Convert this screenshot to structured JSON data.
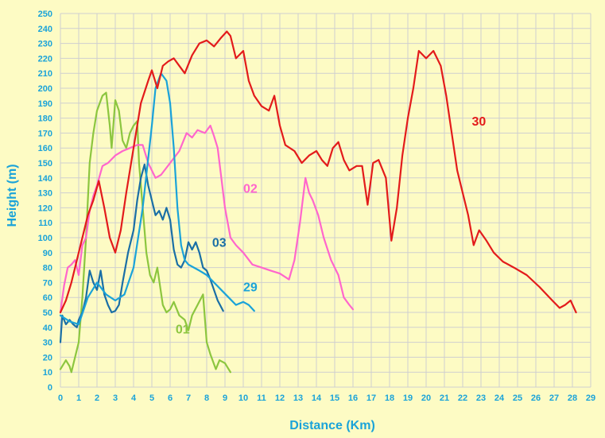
{
  "chart_data": {
    "type": "line",
    "xlabel": "Distance (Km)",
    "ylabel": "Height (m)",
    "xlim": [
      0,
      29
    ],
    "ylim": [
      0,
      250
    ],
    "xticks": [
      "0",
      "1",
      "2",
      "3",
      "4",
      "5",
      "6",
      "7",
      "8",
      "9",
      "10",
      "11",
      "12",
      "13",
      "14",
      "15",
      "16",
      "17",
      "18",
      "19",
      "20",
      "21",
      "22",
      "23",
      "24",
      "25",
      "26",
      "27",
      "28",
      "29"
    ],
    "yticks": [
      "0",
      "10",
      "20",
      "30",
      "40",
      "50",
      "60",
      "70",
      "80",
      "90",
      "100",
      "110",
      "120",
      "130",
      "140",
      "150",
      "160",
      "170",
      "180",
      "190",
      "200",
      "210",
      "220",
      "230",
      "240",
      "250"
    ],
    "grid": true,
    "colors": {
      "background": "#fdfbc4",
      "grid": "#cfcfcf",
      "axis_text": "#1aa3d9"
    },
    "series": [
      {
        "name": "01",
        "color": "#8cc63f",
        "x": [
          0,
          0.3,
          0.5,
          0.6,
          0.8,
          1.0,
          1.2,
          1.4,
          1.6,
          1.8,
          2.0,
          2.3,
          2.5,
          2.7,
          2.8,
          3.0,
          3.2,
          3.4,
          3.6,
          3.8,
          4.0,
          4.2,
          4.3,
          4.5,
          4.7,
          4.9,
          5.1,
          5.3,
          5.6,
          5.8,
          6.0,
          6.2,
          6.5,
          6.8,
          7.0,
          7.2,
          7.5,
          7.8,
          8.0,
          8.2,
          8.5,
          8.7,
          9.0,
          9.3
        ],
        "y": [
          12,
          18,
          14,
          10,
          20,
          30,
          60,
          100,
          150,
          170,
          185,
          195,
          197,
          175,
          160,
          192,
          185,
          165,
          160,
          170,
          175,
          178,
          150,
          120,
          90,
          75,
          70,
          80,
          55,
          50,
          52,
          57,
          48,
          45,
          38,
          48,
          55,
          62,
          30,
          22,
          12,
          18,
          16,
          10
        ]
      },
      {
        "name": "02",
        "color": "#ff66cc",
        "x": [
          0,
          0.2,
          0.4,
          0.6,
          0.8,
          1.0,
          1.2,
          1.4,
          1.6,
          1.8,
          2.0,
          2.3,
          2.6,
          3.0,
          3.4,
          3.8,
          4.2,
          4.5,
          4.8,
          5.2,
          5.5,
          6.0,
          6.5,
          6.9,
          7.2,
          7.5,
          7.9,
          8.2,
          8.4,
          8.6,
          8.8,
          9.0,
          9.3,
          9.6,
          10.0,
          10.5,
          11.0,
          11.5,
          12.0,
          12.5,
          12.8,
          13.1,
          13.4,
          13.6,
          13.8,
          14.1,
          14.4,
          14.8,
          15.2,
          15.5,
          15.8,
          16.0
        ],
        "y": [
          50,
          68,
          80,
          82,
          85,
          75,
          95,
          100,
          118,
          128,
          135,
          148,
          150,
          155,
          158,
          160,
          162,
          162,
          150,
          140,
          142,
          150,
          158,
          170,
          167,
          172,
          170,
          175,
          168,
          160,
          140,
          120,
          100,
          95,
          90,
          82,
          80,
          78,
          76,
          72,
          85,
          110,
          140,
          130,
          125,
          115,
          100,
          85,
          75,
          60,
          55,
          52
        ]
      },
      {
        "name": "03",
        "color": "#1a6fa6",
        "x": [
          0,
          0.1,
          0.3,
          0.5,
          0.7,
          0.9,
          1.0,
          1.2,
          1.4,
          1.6,
          1.8,
          2.0,
          2.2,
          2.4,
          2.6,
          2.8,
          3.0,
          3.2,
          3.4,
          3.7,
          4.0,
          4.2,
          4.4,
          4.6,
          4.8,
          5.0,
          5.2,
          5.4,
          5.6,
          5.8,
          6.0,
          6.2,
          6.4,
          6.6,
          6.8,
          7.0,
          7.2,
          7.4,
          7.6,
          7.8,
          8.0,
          8.2,
          8.4,
          8.6,
          8.9
        ],
        "y": [
          30,
          48,
          42,
          45,
          42,
          40,
          45,
          50,
          60,
          78,
          70,
          65,
          78,
          62,
          55,
          50,
          51,
          55,
          70,
          90,
          105,
          125,
          140,
          149,
          135,
          125,
          115,
          118,
          112,
          120,
          112,
          92,
          82,
          80,
          85,
          97,
          92,
          97,
          90,
          80,
          78,
          72,
          65,
          58,
          51
        ]
      },
      {
        "name": "29",
        "color": "#1aa3d9",
        "x": [
          0,
          0.5,
          1.0,
          1.5,
          2.0,
          2.5,
          3.0,
          3.5,
          4.0,
          4.5,
          5.0,
          5.2,
          5.5,
          5.8,
          6.0,
          6.2,
          6.4,
          6.6,
          6.8,
          7.0,
          7.3,
          7.6,
          8.0,
          8.4,
          8.8,
          9.2,
          9.6,
          10.0,
          10.3,
          10.6
        ],
        "y": [
          48,
          44,
          42,
          60,
          70,
          62,
          58,
          62,
          80,
          120,
          175,
          200,
          210,
          205,
          190,
          160,
          120,
          95,
          85,
          82,
          80,
          78,
          75,
          70,
          65,
          60,
          55,
          57,
          55,
          51
        ]
      },
      {
        "name": "30",
        "color": "#e31b1b",
        "x": [
          0,
          0.3,
          0.6,
          0.9,
          1.2,
          1.5,
          1.8,
          2.1,
          2.4,
          2.7,
          3.0,
          3.3,
          3.6,
          4.0,
          4.4,
          4.8,
          5.0,
          5.3,
          5.6,
          5.9,
          6.2,
          6.5,
          6.8,
          7.2,
          7.6,
          8.0,
          8.4,
          8.8,
          9.1,
          9.3,
          9.6,
          10.0,
          10.3,
          10.6,
          11.0,
          11.4,
          11.7,
          12.0,
          12.3,
          12.8,
          13.2,
          13.6,
          14.0,
          14.3,
          14.6,
          14.9,
          15.2,
          15.5,
          15.8,
          16.2,
          16.5,
          16.8,
          17.1,
          17.4,
          17.8,
          18.1,
          18.4,
          18.7,
          19.0,
          19.3,
          19.6,
          20.0,
          20.4,
          20.8,
          21.1,
          21.4,
          21.7,
          22.0,
          22.3,
          22.6,
          22.9,
          23.3,
          23.7,
          24.2,
          24.8,
          25.5,
          26.2,
          26.9,
          27.3,
          27.6,
          27.9,
          28.2
        ],
        "y": [
          50,
          58,
          70,
          85,
          100,
          115,
          125,
          138,
          120,
          100,
          90,
          105,
          130,
          160,
          190,
          205,
          212,
          200,
          215,
          218,
          220,
          215,
          210,
          222,
          230,
          232,
          228,
          234,
          238,
          235,
          220,
          225,
          205,
          195,
          188,
          185,
          195,
          175,
          162,
          158,
          150,
          155,
          158,
          152,
          148,
          160,
          164,
          152,
          145,
          148,
          148,
          122,
          150,
          152,
          140,
          98,
          120,
          155,
          180,
          200,
          225,
          220,
          225,
          215,
          195,
          170,
          145,
          130,
          115,
          95,
          105,
          98,
          90,
          84,
          80,
          75,
          67,
          58,
          53,
          55,
          58,
          50
        ]
      }
    ],
    "labels": [
      {
        "series": "30",
        "text": "30",
        "x": 22.5,
        "y": 175
      },
      {
        "series": "02",
        "text": "02",
        "x": 10.0,
        "y": 130
      },
      {
        "series": "03",
        "text": "03",
        "x": 8.3,
        "y": 94
      },
      {
        "series": "29",
        "text": "29",
        "x": 10.0,
        "y": 64
      },
      {
        "series": "01",
        "text": "01",
        "x": 6.3,
        "y": 36
      }
    ]
  }
}
